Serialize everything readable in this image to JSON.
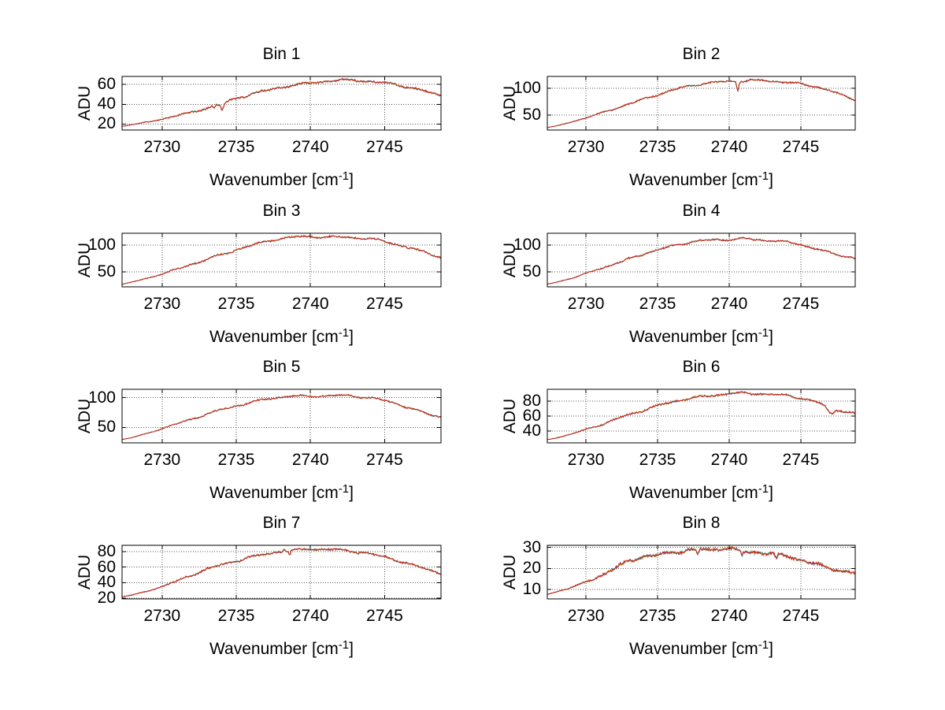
{
  "figure": {
    "kind": "MATLAB-style multi-panel spectrum figure",
    "background": "#ffffff",
    "panels": 8,
    "layout": "4 rows x 2 columns"
  },
  "labels": {
    "ylabel": "ADU",
    "xlabel_pre": "Wavenumber [cm",
    "xlabel_sup": "-1",
    "xlabel_post": "]",
    "xlabel_full": "Wavenumber [cm^-1]"
  },
  "axes": {
    "xlim": [
      2727.3,
      2748.8
    ],
    "x_ticks": [
      2730,
      2735,
      2740,
      2745
    ],
    "x_tick_labels": [
      "2730",
      "2735",
      "2740",
      "2745"
    ],
    "grid": "dotted",
    "box": true
  },
  "style": {
    "trace_colors": [
      "#3a62b8",
      "#1f9e9e",
      "#dfa321",
      "#c22222"
    ],
    "axis_color": "#000000",
    "grid_color": "#555555",
    "text_color": "#000000"
  },
  "chart_data": [
    {
      "type": "line",
      "title": "Bin 1",
      "xlabel": "Wavenumber [cm^-1]",
      "ylabel": "ADU",
      "x": [
        2727,
        2728,
        2729,
        2730,
        2731,
        2732,
        2733,
        2734,
        2735,
        2736,
        2737,
        2738,
        2739,
        2740,
        2741,
        2742,
        2743,
        2744,
        2745,
        2746,
        2747,
        2748,
        2749
      ],
      "y": [
        17,
        19.5,
        22,
        25,
        28.5,
        32,
        36,
        40.5,
        46,
        50,
        54,
        57,
        59.5,
        61.5,
        63,
        64.5,
        64,
        63,
        61.5,
        59,
        56,
        52,
        48
      ],
      "ylim": [
        14,
        68
      ],
      "yticks": [
        20,
        40,
        60
      ],
      "ytick_labels": [
        "20",
        "40",
        "60"
      ],
      "noise_amp": 1.2,
      "trace_spread": 0.7,
      "overlapping_traces": 4,
      "features": [
        {
          "kind": "dip",
          "x": 2733.5,
          "depth": 2.5,
          "width": 0.1
        },
        {
          "kind": "dip",
          "x": 2734.05,
          "depth": 7,
          "width": 0.13
        }
      ]
    },
    {
      "type": "line",
      "title": "Bin 2",
      "xlabel": "Wavenumber [cm^-1]",
      "ylabel": "ADU",
      "x": [
        2727,
        2728,
        2729,
        2730,
        2731,
        2732,
        2733,
        2734,
        2735,
        2736,
        2737,
        2738,
        2739,
        2740,
        2741,
        2742,
        2743,
        2744,
        2745,
        2746,
        2747,
        2748,
        2749
      ],
      "y": [
        25,
        30,
        37,
        45,
        53,
        62,
        71,
        79,
        88,
        96,
        103,
        108,
        111,
        113,
        114,
        115,
        113,
        111,
        108,
        103,
        96,
        86,
        77
      ],
      "ylim": [
        22,
        122
      ],
      "yticks": [
        50,
        100
      ],
      "ytick_labels": [
        "50",
        "100"
      ],
      "noise_amp": 2.0,
      "trace_spread": 0.5,
      "overlapping_traces": 4,
      "features": [
        {
          "kind": "dip",
          "x": 2740.6,
          "depth": 17,
          "width": 0.1
        }
      ]
    },
    {
      "type": "line",
      "title": "Bin 3",
      "xlabel": "Wavenumber [cm^-1]",
      "ylabel": "ADU",
      "x": [
        2727,
        2728,
        2729,
        2730,
        2731,
        2732,
        2733,
        2734,
        2735,
        2736,
        2737,
        2738,
        2739,
        2740,
        2741,
        2742,
        2743,
        2744,
        2745,
        2746,
        2747,
        2748,
        2749
      ],
      "y": [
        25,
        31,
        38,
        46,
        55,
        64,
        73,
        82,
        91,
        99,
        107,
        112,
        115,
        116,
        115,
        115,
        114,
        112,
        107,
        100,
        92,
        84,
        76
      ],
      "ylim": [
        22,
        122
      ],
      "yticks": [
        50,
        100
      ],
      "ytick_labels": [
        "50",
        "100"
      ],
      "noise_amp": 2.2,
      "trace_spread": 0.5,
      "overlapping_traces": 4,
      "features": []
    },
    {
      "type": "line",
      "title": "Bin 4",
      "xlabel": "Wavenumber [cm^-1]",
      "ylabel": "ADU",
      "x": [
        2727,
        2728,
        2729,
        2730,
        2731,
        2732,
        2733,
        2734,
        2735,
        2736,
        2737,
        2738,
        2739,
        2740,
        2741,
        2742,
        2743,
        2744,
        2745,
        2746,
        2747,
        2748,
        2749
      ],
      "y": [
        25,
        31,
        38,
        47,
        56,
        65,
        74,
        83,
        91,
        98,
        104,
        108,
        110,
        110,
        112,
        110,
        108,
        106,
        101,
        93,
        86,
        79,
        74
      ],
      "ylim": [
        22,
        122
      ],
      "yticks": [
        50,
        100
      ],
      "ytick_labels": [
        "50",
        "100"
      ],
      "noise_amp": 2.0,
      "trace_spread": 0.5,
      "overlapping_traces": 4,
      "features": []
    },
    {
      "type": "line",
      "title": "Bin 5",
      "xlabel": "Wavenumber [cm^-1]",
      "ylabel": "ADU",
      "x": [
        2727,
        2728,
        2729,
        2730,
        2731,
        2732,
        2733,
        2734,
        2735,
        2736,
        2737,
        2738,
        2739,
        2740,
        2741,
        2742,
        2743,
        2744,
        2745,
        2746,
        2747,
        2748,
        2749
      ],
      "y": [
        28,
        33,
        40,
        48,
        56,
        64,
        72,
        80,
        86,
        92,
        97,
        101,
        103,
        102,
        103,
        104,
        102,
        100,
        95,
        88,
        80,
        72,
        66
      ],
      "ylim": [
        24,
        114
      ],
      "yticks": [
        50,
        100
      ],
      "ytick_labels": [
        "50",
        "100"
      ],
      "noise_amp": 1.8,
      "trace_spread": 0.5,
      "overlapping_traces": 4,
      "features": []
    },
    {
      "type": "line",
      "title": "Bin 6",
      "xlabel": "Wavenumber [cm^-1]",
      "ylabel": "ADU",
      "x": [
        2727,
        2728,
        2729,
        2730,
        2731,
        2732,
        2733,
        2734,
        2735,
        2736,
        2737,
        2738,
        2739,
        2740,
        2741,
        2742,
        2743,
        2744,
        2745,
        2746,
        2747,
        2748,
        2749
      ],
      "y": [
        27,
        31,
        36,
        42,
        48,
        55,
        62,
        68,
        74,
        79,
        83,
        86,
        88,
        90,
        91,
        90,
        89,
        88,
        84,
        79,
        73,
        66,
        62
      ],
      "ylim": [
        24,
        96
      ],
      "yticks": [
        40,
        60,
        80
      ],
      "ytick_labels": [
        "40",
        "60",
        "80"
      ],
      "noise_amp": 1.6,
      "trace_spread": 0.6,
      "overlapping_traces": 4,
      "features": [
        {
          "kind": "dip",
          "x": 2747.1,
          "depth": 9,
          "width": 0.3
        }
      ]
    },
    {
      "type": "line",
      "title": "Bin 7",
      "xlabel": "Wavenumber [cm^-1]",
      "ylabel": "ADU",
      "x": [
        2727,
        2728,
        2729,
        2730,
        2731,
        2732,
        2733,
        2734,
        2735,
        2736,
        2737,
        2738,
        2739,
        2740,
        2741,
        2742,
        2743,
        2744,
        2745,
        2746,
        2747,
        2748,
        2749
      ],
      "y": [
        21,
        24,
        29,
        35,
        42,
        50,
        57,
        63,
        68,
        73,
        77,
        80,
        82,
        83,
        83,
        82,
        80,
        77,
        73,
        68,
        62,
        56,
        51
      ],
      "ylim": [
        19,
        88
      ],
      "yticks": [
        20,
        40,
        60,
        80
      ],
      "ytick_labels": [
        "20",
        "40",
        "60",
        "80"
      ],
      "noise_amp": 1.6,
      "trace_spread": 0.6,
      "overlapping_traces": 4,
      "features": [
        {
          "kind": "bump",
          "x": 2738.2,
          "depth": -3.5,
          "width": 0.08
        },
        {
          "kind": "dip",
          "x": 2738.6,
          "depth": 5,
          "width": 0.1
        }
      ]
    },
    {
      "type": "line",
      "title": "Bin 8",
      "xlabel": "Wavenumber [cm^-1]",
      "ylabel": "ADU",
      "x": [
        2727,
        2728,
        2729,
        2730,
        2731,
        2732,
        2733,
        2734,
        2735,
        2736,
        2737,
        2738,
        2739,
        2740,
        2741,
        2742,
        2743,
        2744,
        2745,
        2746,
        2747,
        2748,
        2749
      ],
      "y": [
        7,
        9,
        11,
        13.5,
        16.5,
        20,
        23.5,
        25.5,
        26.5,
        27.5,
        28.5,
        29,
        29,
        29.5,
        28,
        27.5,
        27,
        26,
        24,
        22,
        20.5,
        18.5,
        17.5
      ],
      "ylim": [
        5.5,
        31
      ],
      "yticks": [
        10,
        20,
        30
      ],
      "ytick_labels": [
        "10",
        "20",
        "30"
      ],
      "noise_amp": 0.8,
      "trace_spread": 0.9,
      "overlapping_traces": 4,
      "features": [
        {
          "kind": "dip",
          "x": 2737.8,
          "depth": 1.8,
          "width": 0.1
        },
        {
          "kind": "dip",
          "x": 2740.9,
          "depth": 1.8,
          "width": 0.1
        },
        {
          "kind": "dip",
          "x": 2743.3,
          "depth": 2.2,
          "width": 0.12
        }
      ]
    }
  ]
}
